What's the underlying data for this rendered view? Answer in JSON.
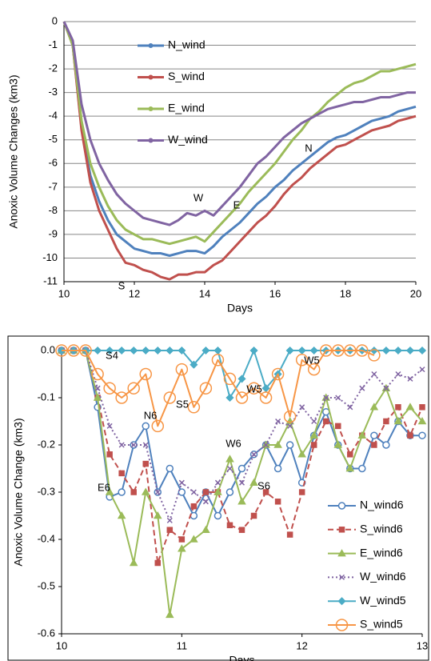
{
  "chart_data": [
    {
      "type": "line",
      "x_label": "Days",
      "y_label": "Anoxic Volume Changes (km3)",
      "x": [
        10,
        10.25,
        10.5,
        10.75,
        11,
        11.25,
        11.5,
        11.75,
        12,
        12.25,
        12.5,
        12.75,
        13,
        13.25,
        13.5,
        13.75,
        14,
        14.25,
        14.5,
        14.75,
        15,
        15.25,
        15.5,
        15.75,
        16,
        16.25,
        16.5,
        16.75,
        17,
        17.25,
        17.5,
        17.75,
        18,
        18.25,
        18.5,
        18.75,
        19,
        19.25,
        19.5,
        19.75,
        20
      ],
      "xlim": [
        10,
        20
      ],
      "xticks": [
        10,
        12,
        14,
        16,
        18,
        20
      ],
      "ylim": [
        -11,
        0
      ],
      "yticks": [
        0,
        -1,
        -2,
        -3,
        -4,
        -5,
        -6,
        -7,
        -8,
        -9,
        -10,
        -11
      ],
      "grid": true,
      "legend": "upper left",
      "series": [
        {
          "name": "N_wind",
          "color": "#4f81bd",
          "values": [
            0,
            -1,
            -4.5,
            -6.5,
            -7.6,
            -8.4,
            -9.0,
            -9.3,
            -9.6,
            -9.7,
            -9.8,
            -9.8,
            -9.9,
            -9.8,
            -9.7,
            -9.7,
            -9.8,
            -9.5,
            -9.1,
            -8.8,
            -8.5,
            -8.1,
            -7.7,
            -7.4,
            -7.0,
            -6.7,
            -6.3,
            -6.0,
            -5.7,
            -5.4,
            -5.1,
            -4.9,
            -4.8,
            -4.6,
            -4.4,
            -4.2,
            -4.1,
            -4.0,
            -3.8,
            -3.7,
            -3.6
          ]
        },
        {
          "name": "S_wind",
          "color": "#c0504d",
          "values": [
            0,
            -1,
            -4.6,
            -6.8,
            -8.0,
            -8.8,
            -9.6,
            -10.2,
            -10.3,
            -10.5,
            -10.6,
            -10.8,
            -10.9,
            -10.7,
            -10.7,
            -10.6,
            -10.6,
            -10.3,
            -10.1,
            -9.7,
            -9.3,
            -8.9,
            -8.5,
            -8.2,
            -7.8,
            -7.3,
            -6.9,
            -6.6,
            -6.2,
            -5.9,
            -5.6,
            -5.3,
            -5.2,
            -5.0,
            -4.8,
            -4.6,
            -4.5,
            -4.4,
            -4.2,
            -4.1,
            -4.0
          ]
        },
        {
          "name": "E_wind",
          "color": "#9bbb59",
          "values": [
            0,
            -1,
            -4.2,
            -6.0,
            -7.0,
            -7.8,
            -8.4,
            -8.8,
            -9.0,
            -9.2,
            -9.2,
            -9.3,
            -9.4,
            -9.3,
            -9.2,
            -9.1,
            -9.3,
            -8.9,
            -8.5,
            -8.1,
            -7.7,
            -7.2,
            -6.8,
            -6.4,
            -6.0,
            -5.5,
            -5.0,
            -4.6,
            -4.1,
            -3.8,
            -3.4,
            -3.1,
            -2.8,
            -2.6,
            -2.5,
            -2.3,
            -2.1,
            -2.1,
            -2.0,
            -1.9,
            -1.8
          ]
        },
        {
          "name": "W_wind",
          "color": "#8064a2",
          "values": [
            0,
            -0.8,
            -3.5,
            -5.0,
            -6.0,
            -6.7,
            -7.3,
            -7.7,
            -8.0,
            -8.3,
            -8.4,
            -8.5,
            -8.6,
            -8.4,
            -8.1,
            -8.2,
            -8.0,
            -8.2,
            -7.8,
            -7.4,
            -7.0,
            -6.5,
            -6.0,
            -5.7,
            -5.3,
            -4.9,
            -4.6,
            -4.3,
            -4.1,
            -3.9,
            -3.7,
            -3.6,
            -3.5,
            -3.4,
            -3.4,
            -3.3,
            -3.2,
            -3.2,
            -3.1,
            -3.0,
            -3.0
          ]
        }
      ],
      "annotations": [
        "W",
        "E",
        "N",
        "S"
      ]
    },
    {
      "type": "line",
      "x_label": "Days",
      "y_label": "Anoxic Volume Change (km3)",
      "x": [
        10,
        10.1,
        10.2,
        10.3,
        10.4,
        10.5,
        10.6,
        10.7,
        10.8,
        10.9,
        11,
        11.1,
        11.2,
        11.3,
        11.4,
        11.5,
        11.6,
        11.7,
        11.8,
        11.9,
        12,
        12.1,
        12.2,
        12.3,
        12.4,
        12.5,
        12.6,
        12.7,
        12.8,
        12.9,
        13
      ],
      "xlim": [
        10,
        13
      ],
      "xticks": [
        10,
        11,
        12,
        13
      ],
      "ylim": [
        -0.6,
        0
      ],
      "yticks": [
        {
          "value": 0,
          "label": "0.0"
        },
        -0.1,
        -0.2,
        -0.3,
        -0.4,
        -0.5,
        -0.6
      ],
      "grid": false,
      "legend": "lower right",
      "series": [
        {
          "name": "N_wind6",
          "color": "#4f81bd",
          "marker": "circle",
          "dash": "solid",
          "values": [
            0,
            0,
            0,
            -0.12,
            -0.31,
            -0.3,
            -0.2,
            -0.16,
            -0.3,
            -0.25,
            -0.3,
            -0.35,
            -0.3,
            -0.35,
            -0.3,
            -0.25,
            -0.22,
            -0.2,
            -0.25,
            -0.2,
            -0.28,
            -0.18,
            -0.13,
            -0.2,
            -0.25,
            -0.25,
            -0.18,
            -0.2,
            -0.15,
            -0.18,
            -0.18
          ]
        },
        {
          "name": "S_wind6",
          "color": "#c0504d",
          "marker": "square",
          "dash": "dashed",
          "values": [
            0,
            0,
            0,
            -0.1,
            -0.22,
            -0.26,
            -0.3,
            -0.24,
            -0.45,
            -0.38,
            -0.4,
            -0.33,
            -0.3,
            -0.3,
            -0.37,
            -0.38,
            -0.35,
            -0.3,
            -0.32,
            -0.39,
            -0.3,
            -0.2,
            -0.15,
            -0.16,
            -0.22,
            -0.18,
            -0.2,
            -0.15,
            -0.12,
            -0.18,
            -0.12
          ]
        },
        {
          "name": "E_wind6",
          "color": "#9bbb59",
          "marker": "triangle",
          "dash": "solid",
          "values": [
            0,
            0,
            0,
            -0.1,
            -0.3,
            -0.35,
            -0.45,
            -0.3,
            -0.35,
            -0.56,
            -0.42,
            -0.4,
            -0.38,
            -0.3,
            -0.23,
            -0.32,
            -0.28,
            -0.2,
            -0.2,
            -0.15,
            -0.22,
            -0.18,
            -0.1,
            -0.2,
            -0.25,
            -0.18,
            -0.12,
            -0.08,
            -0.15,
            -0.12,
            -0.15
          ]
        },
        {
          "name": "W_wind6",
          "color": "#8064a2",
          "marker": "x",
          "dash": "dotted",
          "values": [
            0,
            0,
            0,
            -0.08,
            -0.16,
            -0.2,
            -0.2,
            -0.2,
            -0.3,
            -0.36,
            -0.28,
            -0.3,
            -0.32,
            -0.28,
            -0.25,
            -0.28,
            -0.22,
            -0.2,
            -0.15,
            -0.16,
            -0.12,
            -0.15,
            -0.1,
            -0.1,
            -0.12,
            -0.08,
            -0.05,
            -0.08,
            -0.05,
            -0.06,
            -0.04
          ]
        },
        {
          "name": "W_wind5",
          "color": "#4bacc6",
          "marker": "diamond",
          "dash": "solid",
          "values": [
            0,
            0,
            0,
            0,
            0,
            0,
            0,
            0,
            0,
            0,
            0,
            -0.03,
            0,
            0,
            -0.1,
            -0.06,
            0,
            -0.08,
            -0.05,
            0,
            0,
            0,
            0,
            0,
            0,
            0,
            0,
            0,
            0,
            0,
            0
          ]
        },
        {
          "name": "S_wind5",
          "color": "#f79646",
          "marker": "ring",
          "dash": "solid",
          "values": [
            0,
            0,
            0,
            -0.05,
            -0.08,
            -0.1,
            -0.08,
            -0.05,
            -0.16,
            -0.1,
            -0.04,
            -0.12,
            -0.08,
            -0.02,
            -0.06,
            -0.1,
            -0.08,
            -0.1,
            -0.05,
            -0.14,
            -0.02,
            -0.04,
            0,
            0,
            0,
            0,
            -0.01,
            null,
            null,
            null,
            null
          ]
        }
      ],
      "annotations": [
        "S4",
        "W5",
        "W5",
        "S5",
        "N6",
        "W6",
        "S6",
        "E6"
      ]
    }
  ]
}
